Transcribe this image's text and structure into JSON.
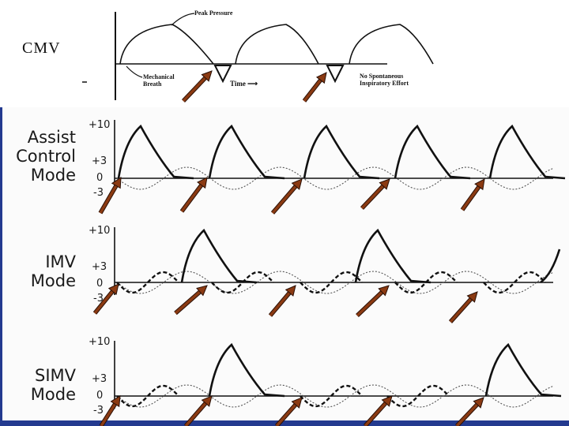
{
  "cmv": {
    "label": "CMV",
    "peak_pressure": "Peak Pressure",
    "mechanical_breath": [
      "Mechanical",
      "Breath"
    ],
    "time": "Time",
    "no_spontaneous": [
      "No Spontaneous",
      "Inspiratory Effort"
    ]
  },
  "panels": [
    {
      "label": [
        "Assist",
        "Control",
        "Mode"
      ],
      "ticks": [
        "+10",
        "+3",
        "0",
        "-3"
      ]
    },
    {
      "label": [
        "IMV",
        "Mode"
      ],
      "ticks": [
        "+10",
        "+3",
        "0",
        "-3"
      ]
    },
    {
      "label": [
        "SIMV",
        "Mode"
      ],
      "ticks": [
        "+10",
        "+3",
        "0",
        "-3"
      ]
    }
  ],
  "colors": {
    "arrow": "#8b3a12",
    "arrow_outline": "#2a1006",
    "border_blue": "#233a8f",
    "curve": "#111111",
    "dotted": "#555555"
  }
}
